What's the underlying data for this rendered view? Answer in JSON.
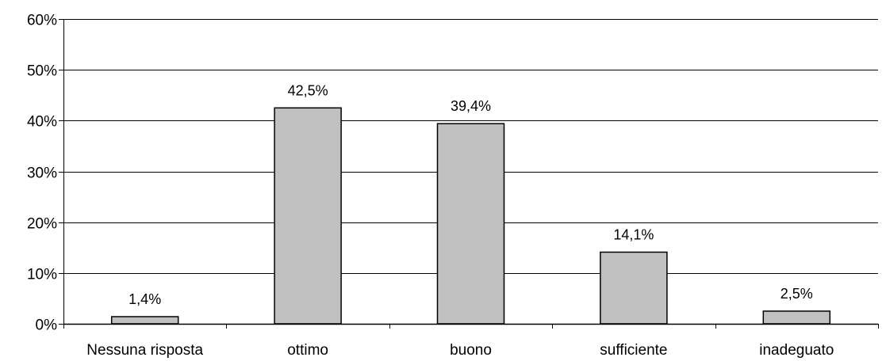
{
  "chart_data": {
    "type": "bar",
    "categories": [
      "Nessuna risposta",
      "ottimo",
      "buono",
      "sufficiente",
      "inadeguato"
    ],
    "values": [
      1.4,
      42.5,
      39.4,
      14.1,
      2.5
    ],
    "data_labels": [
      "1,4%",
      "42,5%",
      "39,4%",
      "14,1%",
      "2,5%"
    ],
    "y_ticks": [
      0,
      10,
      20,
      30,
      40,
      50,
      60
    ],
    "y_tick_labels": [
      "0%",
      "10%",
      "20%",
      "30%",
      "40%",
      "50%",
      "60%"
    ],
    "ylim": [
      0,
      60
    ],
    "grid": true,
    "legend": "none",
    "colors": {
      "bar_fill": "#c0c0c0",
      "bar_stroke": "#000000",
      "gridline": "#000000"
    }
  }
}
